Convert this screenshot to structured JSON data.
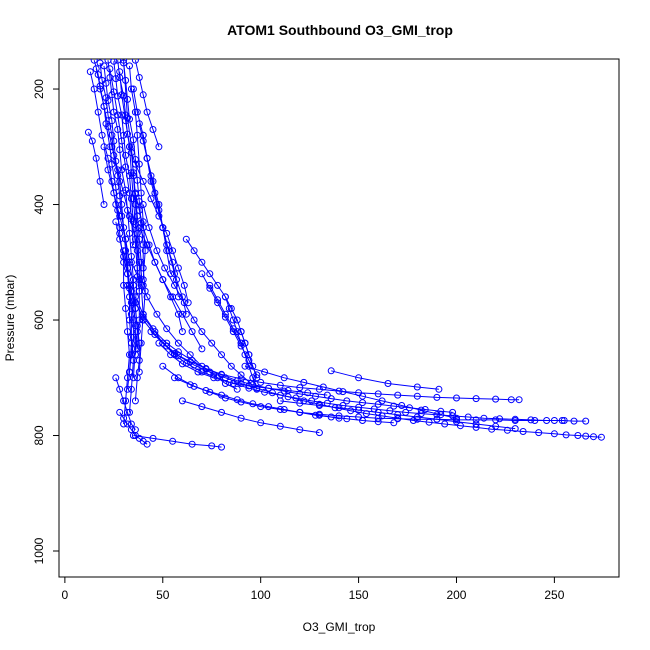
{
  "chart_data": {
    "type": "line",
    "title": "ATOM1 Southbound O3_GMI_trop",
    "xlabel": "O3_GMI_trop",
    "ylabel": "Pressure (mbar)",
    "xlim": [
      -3,
      283
    ],
    "ylim": [
      1045,
      148
    ],
    "x_ticks": [
      0,
      50,
      100,
      150,
      200,
      250
    ],
    "y_ticks": [
      200,
      400,
      600,
      800,
      1000
    ],
    "grid": false,
    "legend": "none",
    "color": "#0000ff",
    "series": [
      {
        "x": [
          15,
          17,
          18,
          20,
          21,
          23,
          24,
          26,
          27,
          28,
          30,
          30,
          31,
          32,
          33,
          32,
          31,
          30
        ],
        "y": [
          150,
          175,
          200,
          230,
          260,
          300,
          330,
          370,
          410,
          450,
          500,
          540,
          580,
          620,
          660,
          700,
          740,
          780
        ]
      },
      {
        "x": [
          18,
          19,
          21,
          22,
          24,
          25,
          27,
          28,
          29,
          31,
          32,
          33,
          34,
          34,
          35,
          34,
          33
        ],
        "y": [
          155,
          185,
          215,
          245,
          280,
          315,
          350,
          385,
          420,
          460,
          500,
          545,
          590,
          630,
          670,
          720,
          760
        ]
      },
      {
        "x": [
          20,
          21,
          22,
          24,
          25,
          26,
          28,
          29,
          30,
          31,
          32,
          33,
          33,
          34,
          33
        ],
        "y": [
          160,
          190,
          220,
          255,
          290,
          325,
          360,
          400,
          440,
          480,
          520,
          560,
          600,
          640,
          690
        ]
      },
      {
        "x": [
          22,
          23,
          24,
          25,
          27,
          28,
          29,
          31,
          32,
          33,
          34,
          35,
          35,
          36,
          36,
          35
        ],
        "y": [
          150,
          180,
          210,
          240,
          270,
          305,
          340,
          375,
          410,
          450,
          490,
          530,
          570,
          610,
          650,
          700
        ]
      },
      {
        "x": [
          25,
          26,
          27,
          29,
          30,
          31,
          33,
          34,
          35,
          36,
          37,
          38,
          38,
          37
        ],
        "y": [
          152,
          182,
          212,
          245,
          280,
          315,
          350,
          390,
          430,
          470,
          510,
          550,
          600,
          650
        ]
      },
      {
        "x": [
          27,
          28,
          30,
          31,
          32,
          34,
          35,
          36,
          37,
          38,
          39,
          39,
          40,
          39,
          38
        ],
        "y": [
          150,
          180,
          212,
          245,
          278,
          310,
          345,
          382,
          420,
          460,
          500,
          540,
          590,
          640,
          690
        ]
      },
      {
        "x": [
          30,
          31,
          32,
          33,
          35,
          36,
          37,
          38,
          39,
          40,
          40,
          41,
          40
        ],
        "y": [
          155,
          185,
          218,
          252,
          288,
          322,
          358,
          395,
          432,
          470,
          510,
          550,
          600
        ]
      },
      {
        "x": [
          16,
          18,
          20,
          22,
          24,
          27,
          30,
          33,
          36,
          38,
          40
        ],
        "y": [
          165,
          195,
          230,
          265,
          300,
          340,
          380,
          420,
          460,
          500,
          540
        ]
      },
      {
        "x": [
          13,
          15,
          17,
          19,
          22,
          24,
          26,
          28
        ],
        "y": [
          170,
          200,
          240,
          280,
          320,
          360,
          400,
          440
        ]
      },
      {
        "x": [
          12,
          14,
          16,
          18,
          20
        ],
        "y": [
          275,
          290,
          320,
          360,
          400
        ]
      },
      {
        "x": [
          30,
          32,
          34,
          35,
          36,
          37,
          38,
          38
        ],
        "y": [
          150,
          250,
          300,
          350,
          400,
          450,
          500,
          550
        ]
      },
      {
        "x": [
          33,
          34,
          36,
          37,
          38,
          39,
          40,
          41,
          40
        ],
        "y": [
          160,
          200,
          240,
          280,
          330,
          380,
          430,
          480,
          530
        ]
      },
      {
        "x": [
          23,
          25,
          27,
          29,
          31,
          33,
          34,
          35
        ],
        "y": [
          165,
          205,
          245,
          290,
          335,
          380,
          425,
          470
        ]
      },
      {
        "x": [
          28,
          29,
          31,
          33,
          34,
          35,
          36,
          37,
          37,
          36
        ],
        "y": [
          170,
          210,
          255,
          300,
          345,
          390,
          435,
          480,
          525,
          570
        ]
      },
      {
        "x": [
          35,
          37,
          40,
          42,
          45,
          48,
          50,
          52,
          54
        ],
        "y": [
          200,
          240,
          280,
          320,
          360,
          400,
          440,
          480,
          520
        ]
      },
      {
        "x": [
          38,
          40,
          42,
          44,
          46,
          48,
          50,
          52,
          55,
          57,
          60,
          62
        ],
        "y": [
          260,
          290,
          320,
          350,
          380,
          410,
          440,
          470,
          500,
          530,
          560,
          590
        ]
      },
      {
        "x": [
          40,
          42,
          44,
          47,
          50,
          53,
          56,
          58
        ],
        "y": [
          280,
          320,
          360,
          400,
          440,
          480,
          520,
          560
        ]
      },
      {
        "x": [
          36,
          38,
          40,
          42,
          45,
          48
        ],
        "y": [
          150,
          180,
          210,
          240,
          270,
          300
        ]
      },
      {
        "x": [
          33,
          36,
          40,
          44,
          48,
          52,
          55,
          58,
          61,
          63
        ],
        "y": [
          300,
          330,
          360,
          390,
          420,
          450,
          480,
          510,
          540,
          570
        ]
      },
      {
        "x": [
          20,
          22,
          25,
          28,
          31,
          33,
          35,
          36,
          37,
          36
        ],
        "y": [
          300,
          340,
          380,
          420,
          460,
          500,
          540,
          580,
          620,
          660
        ]
      },
      {
        "x": [
          26,
          28,
          30,
          32,
          34,
          36,
          37,
          38,
          38,
          37,
          36
        ],
        "y": [
          430,
          460,
          490,
          520,
          550,
          580,
          610,
          640,
          670,
          700,
          740
        ]
      },
      {
        "x": [
          30,
          32,
          33,
          34,
          35,
          35,
          34,
          33,
          32
        ],
        "y": [
          480,
          510,
          540,
          570,
          600,
          630,
          660,
          690,
          720
        ]
      },
      {
        "x": [
          36,
          38,
          40,
          43,
          46,
          50,
          54,
          58,
          60
        ],
        "y": [
          380,
          410,
          440,
          470,
          500,
          530,
          560,
          590,
          620
        ]
      },
      {
        "x": [
          40,
          43,
          47,
          51,
          56,
          61,
          66,
          70,
          75,
          80,
          85,
          90,
          95
        ],
        "y": [
          400,
          440,
          480,
          510,
          540,
          570,
          600,
          620,
          640,
          660,
          680,
          695,
          710
        ]
      },
      {
        "x": [
          38,
          42,
          46,
          50,
          55,
          60,
          65,
          70
        ],
        "y": [
          440,
          470,
          500,
          530,
          560,
          590,
          620,
          650
        ]
      },
      {
        "x": [
          34,
          38,
          42,
          47,
          52,
          58,
          64,
          70,
          76,
          82,
          88
        ],
        "y": [
          500,
          530,
          560,
          590,
          615,
          640,
          660,
          680,
          695,
          710,
          720
        ]
      },
      {
        "x": [
          32,
          36,
          40,
          46,
          52,
          58,
          65,
          72,
          80,
          88,
          96,
          104,
          112,
          120,
          128,
          136,
          144,
          152,
          160,
          168,
          176,
          184,
          192,
          198
        ],
        "y": [
          540,
          570,
          595,
          620,
          640,
          655,
          670,
          685,
          695,
          705,
          712,
          718,
          723,
          728,
          732,
          736,
          740,
          743,
          746,
          749,
          752,
          755,
          758,
          760
        ]
      },
      {
        "x": [
          36,
          40,
          45,
          50,
          56,
          62,
          70,
          78,
          86,
          94,
          102,
          110,
          118,
          126,
          134,
          142,
          150,
          158,
          166,
          174,
          182,
          190,
          198,
          206,
          214,
          222,
          230,
          238,
          246,
          254,
          260,
          266
        ],
        "y": [
          560,
          590,
          615,
          640,
          660,
          675,
          690,
          700,
          710,
          718,
          725,
          730,
          735,
          740,
          744,
          748,
          751,
          754,
          757,
          760,
          762,
          764,
          766,
          768,
          770,
          771,
          772,
          773,
          774,
          774,
          775,
          775
        ]
      },
      {
        "x": [
          40,
          46,
          52,
          58,
          66,
          74,
          82,
          90,
          98,
          106,
          114,
          122,
          130,
          138,
          146,
          154,
          162,
          170,
          178,
          186,
          194,
          202,
          210,
          218,
          226,
          234,
          242,
          250,
          256,
          262,
          266,
          270,
          274
        ],
        "y": [
          600,
          625,
          645,
          662,
          678,
          690,
          700,
          710,
          718,
          726,
          733,
          740,
          746,
          752,
          757,
          762,
          766,
          770,
          774,
          777,
          780,
          783,
          786,
          789,
          791,
          793,
          795,
          797,
          799,
          800,
          801,
          802,
          803
        ]
      },
      {
        "x": [
          44,
          50,
          56,
          64,
          72,
          80,
          90,
          100,
          110,
          120,
          130,
          140,
          150,
          160,
          170,
          180,
          190,
          200,
          210,
          220,
          228,
          232
        ],
        "y": [
          620,
          640,
          658,
          672,
          684,
          694,
          702,
          708,
          713,
          717,
          720,
          723,
          726,
          728,
          730,
          732,
          734,
          735,
          736,
          737,
          738,
          738
        ]
      },
      {
        "x": [
          48,
          54,
          60,
          68,
          76,
          84,
          94,
          104,
          114,
          124,
          134
        ],
        "y": [
          640,
          660,
          676,
          690,
          700,
          708,
          714,
          718,
          722,
          726,
          730
        ]
      },
      {
        "x": [
          50,
          58,
          66,
          74,
          82,
          90,
          100,
          110,
          120,
          130,
          140
        ],
        "y": [
          680,
          700,
          715,
          725,
          735,
          742,
          750,
          755,
          760,
          765,
          770
        ]
      },
      {
        "x": [
          56,
          64,
          72,
          80,
          88,
          96,
          104,
          112,
          120,
          128,
          136,
          144,
          152,
          160,
          168
        ],
        "y": [
          700,
          712,
          722,
          730,
          738,
          745,
          750,
          755,
          760,
          765,
          768,
          771,
          774,
          776,
          778
        ]
      },
      {
        "x": [
          60,
          70,
          80,
          90,
          100,
          110,
          120,
          130
        ],
        "y": [
          740,
          750,
          760,
          770,
          778,
          784,
          790,
          795
        ]
      },
      {
        "x": [
          35,
          45,
          55,
          65,
          75,
          80
        ],
        "y": [
          800,
          805,
          810,
          815,
          818,
          820
        ]
      },
      {
        "x": [
          28,
          30,
          32,
          34,
          36,
          38,
          40,
          42
        ],
        "y": [
          760,
          770,
          780,
          790,
          800,
          805,
          810,
          815
        ]
      },
      {
        "x": [
          26,
          28,
          30,
          32,
          34,
          36
        ],
        "y": [
          700,
          720,
          740,
          760,
          780,
          790
        ]
      },
      {
        "x": [
          62,
          66,
          70,
          74,
          78,
          82,
          85,
          88,
          90,
          92,
          94
        ],
        "y": [
          460,
          480,
          500,
          520,
          540,
          560,
          580,
          600,
          620,
          640,
          660
        ]
      },
      {
        "x": [
          70,
          74,
          78,
          82,
          86,
          90,
          94,
          98
        ],
        "y": [
          520,
          545,
          570,
          595,
          620,
          645,
          670,
          695
        ]
      },
      {
        "x": [
          74,
          78,
          82,
          86,
          90
        ],
        "y": [
          540,
          565,
          590,
          615,
          640
        ]
      },
      {
        "x": [
          82,
          84,
          86,
          88,
          90,
          92,
          94,
          96,
          98
        ],
        "y": [
          560,
          580,
          600,
          620,
          640,
          660,
          680,
          700,
          720
        ]
      },
      {
        "x": [
          90,
          92,
          94,
          96,
          98
        ],
        "y": [
          620,
          640,
          660,
          680,
          700
        ]
      },
      {
        "x": [
          110,
          120,
          130,
          140,
          150,
          160,
          170,
          180,
          190,
          200,
          210,
          220,
          230
        ],
        "y": [
          740,
          744,
          748,
          752,
          756,
          760,
          764,
          768,
          772,
          776,
          780,
          784,
          788
        ]
      },
      {
        "x": [
          120,
          130,
          140,
          150,
          160,
          170,
          180,
          190,
          200,
          210,
          220,
          230,
          240,
          250,
          255
        ],
        "y": [
          760,
          763,
          766,
          768,
          770,
          771,
          772,
          772,
          773,
          773,
          773,
          774,
          774,
          774,
          774
        ]
      },
      {
        "x": [
          92,
          102,
          112,
          122,
          132,
          142,
          152,
          162,
          172,
          182,
          192,
          200
        ],
        "y": [
          680,
          690,
          700,
          708,
          716,
          724,
          732,
          740,
          748,
          756,
          764,
          770
        ]
      },
      {
        "x": [
          136,
          150,
          165,
          180,
          191
        ],
        "y": [
          688,
          700,
          710,
          716,
          720
        ]
      }
    ]
  }
}
